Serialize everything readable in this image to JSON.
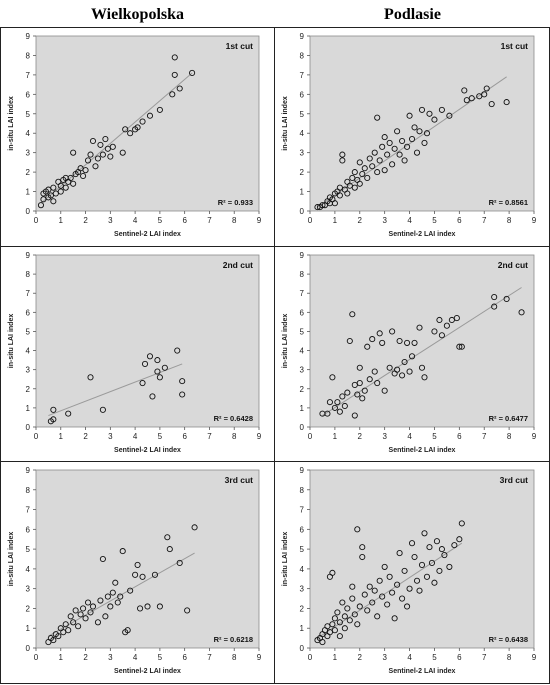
{
  "headers": {
    "left": "Wielkopolska",
    "right": "Podlasie"
  },
  "chart_data": [
    {
      "type": "scatter",
      "column": "Wielkopolska",
      "cut": "1st cut",
      "r2": "R² = 0.933",
      "xlabel": "Sentinel-2 LAI index",
      "ylabel": "in-situ LAI index",
      "xlim": [
        0,
        9
      ],
      "ylim": [
        0,
        9
      ],
      "xticks": [
        0,
        1,
        2,
        3,
        4,
        5,
        6,
        7,
        8,
        9
      ],
      "yticks": [
        0,
        1,
        2,
        3,
        4,
        5,
        6,
        7,
        8,
        9
      ],
      "grid": false,
      "trendline": [
        [
          0.2,
          0.4
        ],
        [
          6.3,
          7.1
        ]
      ],
      "points": [
        [
          0.2,
          0.3
        ],
        [
          0.3,
          0.6
        ],
        [
          0.3,
          0.9
        ],
        [
          0.4,
          1.0
        ],
        [
          0.5,
          0.7
        ],
        [
          0.5,
          1.1
        ],
        [
          0.6,
          0.8
        ],
        [
          0.7,
          0.5
        ],
        [
          0.7,
          1.2
        ],
        [
          0.8,
          0.9
        ],
        [
          0.9,
          1.5
        ],
        [
          1.0,
          1.0
        ],
        [
          1.0,
          1.3
        ],
        [
          1.1,
          1.6
        ],
        [
          1.2,
          1.7
        ],
        [
          1.2,
          1.2
        ],
        [
          1.3,
          1.5
        ],
        [
          1.4,
          1.7
        ],
        [
          1.5,
          3.0
        ],
        [
          1.5,
          1.4
        ],
        [
          1.6,
          1.9
        ],
        [
          1.7,
          2.0
        ],
        [
          1.8,
          2.2
        ],
        [
          1.9,
          1.8
        ],
        [
          2.0,
          2.1
        ],
        [
          2.1,
          2.6
        ],
        [
          2.2,
          2.9
        ],
        [
          2.3,
          3.6
        ],
        [
          2.4,
          2.3
        ],
        [
          2.5,
          2.7
        ],
        [
          2.6,
          3.4
        ],
        [
          2.7,
          2.9
        ],
        [
          2.8,
          3.7
        ],
        [
          2.9,
          3.2
        ],
        [
          3.0,
          2.8
        ],
        [
          3.1,
          3.3
        ],
        [
          3.5,
          3.0
        ],
        [
          3.6,
          4.2
        ],
        [
          3.8,
          4.0
        ],
        [
          4.0,
          4.2
        ],
        [
          4.1,
          4.3
        ],
        [
          4.3,
          4.6
        ],
        [
          4.6,
          4.9
        ],
        [
          5.0,
          5.2
        ],
        [
          5.5,
          6.0
        ],
        [
          5.6,
          7.0
        ],
        [
          5.6,
          7.9
        ],
        [
          5.8,
          6.3
        ],
        [
          6.3,
          7.1
        ]
      ]
    },
    {
      "type": "scatter",
      "column": "Podlasie",
      "cut": "1st cut",
      "r2": "R² = 0.8561",
      "xlabel": "Sentinel-2 LAI index",
      "ylabel": "in-situ LAI index",
      "xlim": [
        0,
        9
      ],
      "ylim": [
        0,
        9
      ],
      "xticks": [
        0,
        1,
        2,
        3,
        4,
        5,
        6,
        7,
        8,
        9
      ],
      "yticks": [
        0,
        1,
        2,
        3,
        4,
        5,
        6,
        7,
        8,
        9
      ],
      "grid": false,
      "trendline": [
        [
          0.3,
          0.2
        ],
        [
          7.9,
          6.9
        ]
      ],
      "points": [
        [
          0.3,
          0.2
        ],
        [
          0.4,
          0.2
        ],
        [
          0.5,
          0.3
        ],
        [
          0.6,
          0.3
        ],
        [
          0.7,
          0.5
        ],
        [
          0.8,
          0.4
        ],
        [
          0.8,
          0.7
        ],
        [
          0.9,
          0.6
        ],
        [
          1.0,
          0.9
        ],
        [
          1.0,
          0.4
        ],
        [
          1.1,
          1.0
        ],
        [
          1.2,
          0.8
        ],
        [
          1.2,
          1.2
        ],
        [
          1.3,
          2.6
        ],
        [
          1.3,
          2.9
        ],
        [
          1.4,
          1.1
        ],
        [
          1.5,
          1.5
        ],
        [
          1.5,
          0.9
        ],
        [
          1.6,
          1.3
        ],
        [
          1.7,
          1.7
        ],
        [
          1.8,
          1.2
        ],
        [
          1.8,
          2.0
        ],
        [
          1.9,
          1.6
        ],
        [
          2.0,
          1.4
        ],
        [
          2.0,
          2.5
        ],
        [
          2.1,
          1.9
        ],
        [
          2.2,
          2.2
        ],
        [
          2.3,
          1.7
        ],
        [
          2.4,
          2.7
        ],
        [
          2.5,
          2.3
        ],
        [
          2.6,
          3.0
        ],
        [
          2.7,
          4.8
        ],
        [
          2.7,
          2.0
        ],
        [
          2.8,
          2.6
        ],
        [
          2.9,
          3.3
        ],
        [
          3.0,
          2.1
        ],
        [
          3.0,
          3.8
        ],
        [
          3.1,
          2.9
        ],
        [
          3.2,
          3.5
        ],
        [
          3.3,
          2.4
        ],
        [
          3.4,
          3.2
        ],
        [
          3.5,
          4.1
        ],
        [
          3.6,
          2.9
        ],
        [
          3.7,
          3.6
        ],
        [
          3.8,
          2.6
        ],
        [
          3.9,
          3.3
        ],
        [
          4.0,
          4.9
        ],
        [
          4.1,
          3.7
        ],
        [
          4.2,
          4.3
        ],
        [
          4.3,
          3.0
        ],
        [
          4.4,
          4.1
        ],
        [
          4.5,
          5.2
        ],
        [
          4.6,
          3.5
        ],
        [
          4.7,
          4.0
        ],
        [
          4.8,
          5.0
        ],
        [
          5.0,
          4.7
        ],
        [
          5.3,
          5.2
        ],
        [
          5.6,
          4.9
        ],
        [
          6.2,
          6.2
        ],
        [
          6.3,
          5.7
        ],
        [
          6.5,
          5.8
        ],
        [
          6.8,
          5.9
        ],
        [
          7.0,
          6.0
        ],
        [
          7.1,
          6.3
        ],
        [
          7.9,
          5.6
        ],
        [
          7.3,
          5.5
        ]
      ]
    },
    {
      "type": "scatter",
      "column": "Wielkopolska",
      "cut": "2nd cut",
      "r2": "R² = 0.6428",
      "xlabel": "Sentinel-2 LAI index",
      "ylabel": "in-situ LAI index",
      "xlim": [
        0,
        9
      ],
      "ylim": [
        0,
        9
      ],
      "xticks": [
        0,
        1,
        2,
        3,
        4,
        5,
        6,
        7,
        8,
        9
      ],
      "yticks": [
        0,
        1,
        2,
        3,
        4,
        5,
        6,
        7,
        8,
        9
      ],
      "grid": false,
      "trendline": [
        [
          0.5,
          0.6
        ],
        [
          5.9,
          3.3
        ]
      ],
      "points": [
        [
          0.6,
          0.3
        ],
        [
          0.7,
          0.9
        ],
        [
          0.7,
          0.4
        ],
        [
          1.3,
          0.7
        ],
        [
          2.2,
          2.6
        ],
        [
          2.7,
          0.9
        ],
        [
          4.3,
          2.3
        ],
        [
          4.4,
          3.3
        ],
        [
          4.6,
          3.7
        ],
        [
          4.7,
          1.6
        ],
        [
          4.9,
          3.5
        ],
        [
          4.9,
          2.9
        ],
        [
          5.0,
          2.6
        ],
        [
          5.2,
          3.1
        ],
        [
          5.7,
          4.0
        ],
        [
          5.9,
          2.4
        ],
        [
          5.9,
          1.7
        ]
      ]
    },
    {
      "type": "scatter",
      "column": "Podlasie",
      "cut": "2nd cut",
      "r2": "R² = 0.6477",
      "xlabel": "Sentinel-2 LAI index",
      "ylabel": "in-situ LAI index",
      "xlim": [
        0,
        9
      ],
      "ylim": [
        0,
        9
      ],
      "xticks": [
        0,
        1,
        2,
        3,
        4,
        5,
        6,
        7,
        8,
        9
      ],
      "yticks": [
        0,
        1,
        2,
        3,
        4,
        5,
        6,
        7,
        8,
        9
      ],
      "grid": false,
      "trendline": [
        [
          0.5,
          0.6
        ],
        [
          8.5,
          7.3
        ]
      ],
      "points": [
        [
          0.5,
          0.7
        ],
        [
          0.7,
          0.7
        ],
        [
          0.8,
          1.3
        ],
        [
          0.9,
          2.6
        ],
        [
          1.0,
          1.0
        ],
        [
          1.1,
          1.3
        ],
        [
          1.2,
          0.8
        ],
        [
          1.3,
          1.6
        ],
        [
          1.4,
          1.1
        ],
        [
          1.5,
          1.8
        ],
        [
          1.6,
          4.5
        ],
        [
          1.7,
          5.9
        ],
        [
          1.8,
          2.2
        ],
        [
          1.8,
          0.6
        ],
        [
          1.9,
          1.7
        ],
        [
          2.0,
          2.3
        ],
        [
          2.0,
          3.1
        ],
        [
          2.1,
          1.5
        ],
        [
          2.2,
          1.9
        ],
        [
          2.3,
          4.2
        ],
        [
          2.4,
          2.5
        ],
        [
          2.5,
          4.6
        ],
        [
          2.6,
          2.9
        ],
        [
          2.7,
          2.3
        ],
        [
          2.8,
          4.9
        ],
        [
          2.9,
          4.4
        ],
        [
          3.0,
          1.9
        ],
        [
          3.2,
          3.1
        ],
        [
          3.3,
          5.0
        ],
        [
          3.4,
          2.8
        ],
        [
          3.5,
          3.0
        ],
        [
          3.6,
          4.5
        ],
        [
          3.7,
          2.7
        ],
        [
          3.8,
          3.4
        ],
        [
          3.9,
          4.4
        ],
        [
          4.0,
          2.9
        ],
        [
          4.1,
          3.7
        ],
        [
          4.2,
          4.4
        ],
        [
          4.4,
          5.2
        ],
        [
          4.5,
          3.1
        ],
        [
          4.6,
          2.6
        ],
        [
          5.0,
          5.0
        ],
        [
          5.2,
          5.6
        ],
        [
          5.3,
          4.8
        ],
        [
          5.5,
          5.3
        ],
        [
          5.7,
          5.6
        ],
        [
          5.9,
          5.7
        ],
        [
          6.0,
          4.2
        ],
        [
          6.1,
          4.2
        ],
        [
          7.4,
          6.3
        ],
        [
          7.4,
          6.8
        ],
        [
          7.9,
          6.7
        ],
        [
          8.5,
          6.0
        ]
      ]
    },
    {
      "type": "scatter",
      "column": "Wielkopolska",
      "cut": "3rd cut",
      "r2": "R² = 0.6218",
      "xlabel": "Sentinel-2 LAI index",
      "ylabel": "in-situ LAI index",
      "xlim": [
        0,
        9
      ],
      "ylim": [
        0,
        9
      ],
      "xticks": [
        0,
        1,
        2,
        3,
        4,
        5,
        6,
        7,
        8,
        9
      ],
      "yticks": [
        0,
        1,
        2,
        3,
        4,
        5,
        6,
        7,
        8,
        9
      ],
      "grid": false,
      "trendline": [
        [
          0.5,
          0.6
        ],
        [
          6.4,
          4.8
        ]
      ],
      "points": [
        [
          0.5,
          0.3
        ],
        [
          0.6,
          0.5
        ],
        [
          0.7,
          0.4
        ],
        [
          0.8,
          0.7
        ],
        [
          0.9,
          0.6
        ],
        [
          1.0,
          1.0
        ],
        [
          1.1,
          0.8
        ],
        [
          1.2,
          1.2
        ],
        [
          1.3,
          0.9
        ],
        [
          1.4,
          1.6
        ],
        [
          1.5,
          1.3
        ],
        [
          1.6,
          1.9
        ],
        [
          1.7,
          1.1
        ],
        [
          1.8,
          1.7
        ],
        [
          1.9,
          2.0
        ],
        [
          2.0,
          1.5
        ],
        [
          2.1,
          2.3
        ],
        [
          2.2,
          1.8
        ],
        [
          2.3,
          2.1
        ],
        [
          2.5,
          1.3
        ],
        [
          2.6,
          2.4
        ],
        [
          2.7,
          4.5
        ],
        [
          2.8,
          1.6
        ],
        [
          2.9,
          2.6
        ],
        [
          3.0,
          2.1
        ],
        [
          3.1,
          2.8
        ],
        [
          3.2,
          3.3
        ],
        [
          3.3,
          2.3
        ],
        [
          3.4,
          2.6
        ],
        [
          3.5,
          4.9
        ],
        [
          3.6,
          0.8
        ],
        [
          3.7,
          0.9
        ],
        [
          3.8,
          2.9
        ],
        [
          4.0,
          3.7
        ],
        [
          4.1,
          4.2
        ],
        [
          4.2,
          2.0
        ],
        [
          4.3,
          3.6
        ],
        [
          4.5,
          2.1
        ],
        [
          4.8,
          3.7
        ],
        [
          5.0,
          2.1
        ],
        [
          5.3,
          5.6
        ],
        [
          5.4,
          5.0
        ],
        [
          5.8,
          4.3
        ],
        [
          6.1,
          1.9
        ],
        [
          6.4,
          6.1
        ]
      ]
    },
    {
      "type": "scatter",
      "column": "Podlasie",
      "cut": "3rd cut",
      "r2": "R² = 0.6438",
      "xlabel": "Sentinel-2 LAI index",
      "ylabel": "in-situ LAI index",
      "xlim": [
        0,
        9
      ],
      "ylim": [
        0,
        9
      ],
      "xticks": [
        0,
        1,
        2,
        3,
        4,
        5,
        6,
        7,
        8,
        9
      ],
      "yticks": [
        0,
        1,
        2,
        3,
        4,
        5,
        6,
        7,
        8,
        9
      ],
      "grid": false,
      "trendline": [
        [
          0.3,
          0.5
        ],
        [
          6.1,
          5.3
        ]
      ],
      "points": [
        [
          0.3,
          0.4
        ],
        [
          0.4,
          0.5
        ],
        [
          0.5,
          0.7
        ],
        [
          0.5,
          0.3
        ],
        [
          0.6,
          0.9
        ],
        [
          0.7,
          0.6
        ],
        [
          0.7,
          1.1
        ],
        [
          0.8,
          3.6
        ],
        [
          0.8,
          0.8
        ],
        [
          0.9,
          3.8
        ],
        [
          0.9,
          1.2
        ],
        [
          1.0,
          1.5
        ],
        [
          1.0,
          0.9
        ],
        [
          1.1,
          1.8
        ],
        [
          1.2,
          1.3
        ],
        [
          1.2,
          0.6
        ],
        [
          1.3,
          2.3
        ],
        [
          1.4,
          1.6
        ],
        [
          1.4,
          1.0
        ],
        [
          1.5,
          2.0
        ],
        [
          1.6,
          1.4
        ],
        [
          1.7,
          2.5
        ],
        [
          1.7,
          3.1
        ],
        [
          1.8,
          1.7
        ],
        [
          1.9,
          6.0
        ],
        [
          1.9,
          1.2
        ],
        [
          2.0,
          2.1
        ],
        [
          2.1,
          4.6
        ],
        [
          2.1,
          5.1
        ],
        [
          2.2,
          2.7
        ],
        [
          2.3,
          1.9
        ],
        [
          2.4,
          3.1
        ],
        [
          2.5,
          2.3
        ],
        [
          2.6,
          2.9
        ],
        [
          2.7,
          1.6
        ],
        [
          2.8,
          3.4
        ],
        [
          2.9,
          2.6
        ],
        [
          3.0,
          4.1
        ],
        [
          3.1,
          2.2
        ],
        [
          3.2,
          3.6
        ],
        [
          3.3,
          2.8
        ],
        [
          3.4,
          1.5
        ],
        [
          3.5,
          3.2
        ],
        [
          3.6,
          4.8
        ],
        [
          3.7,
          2.5
        ],
        [
          3.8,
          3.9
        ],
        [
          3.9,
          2.1
        ],
        [
          4.0,
          3.0
        ],
        [
          4.1,
          5.3
        ],
        [
          4.2,
          4.6
        ],
        [
          4.3,
          3.4
        ],
        [
          4.4,
          2.9
        ],
        [
          4.5,
          4.2
        ],
        [
          4.6,
          5.8
        ],
        [
          4.7,
          3.6
        ],
        [
          4.8,
          5.1
        ],
        [
          4.9,
          4.3
        ],
        [
          5.0,
          3.3
        ],
        [
          5.1,
          5.4
        ],
        [
          5.2,
          3.9
        ],
        [
          5.3,
          5.0
        ],
        [
          5.4,
          4.7
        ],
        [
          5.6,
          4.1
        ],
        [
          5.8,
          5.2
        ],
        [
          6.0,
          5.5
        ],
        [
          6.1,
          6.3
        ]
      ]
    }
  ]
}
